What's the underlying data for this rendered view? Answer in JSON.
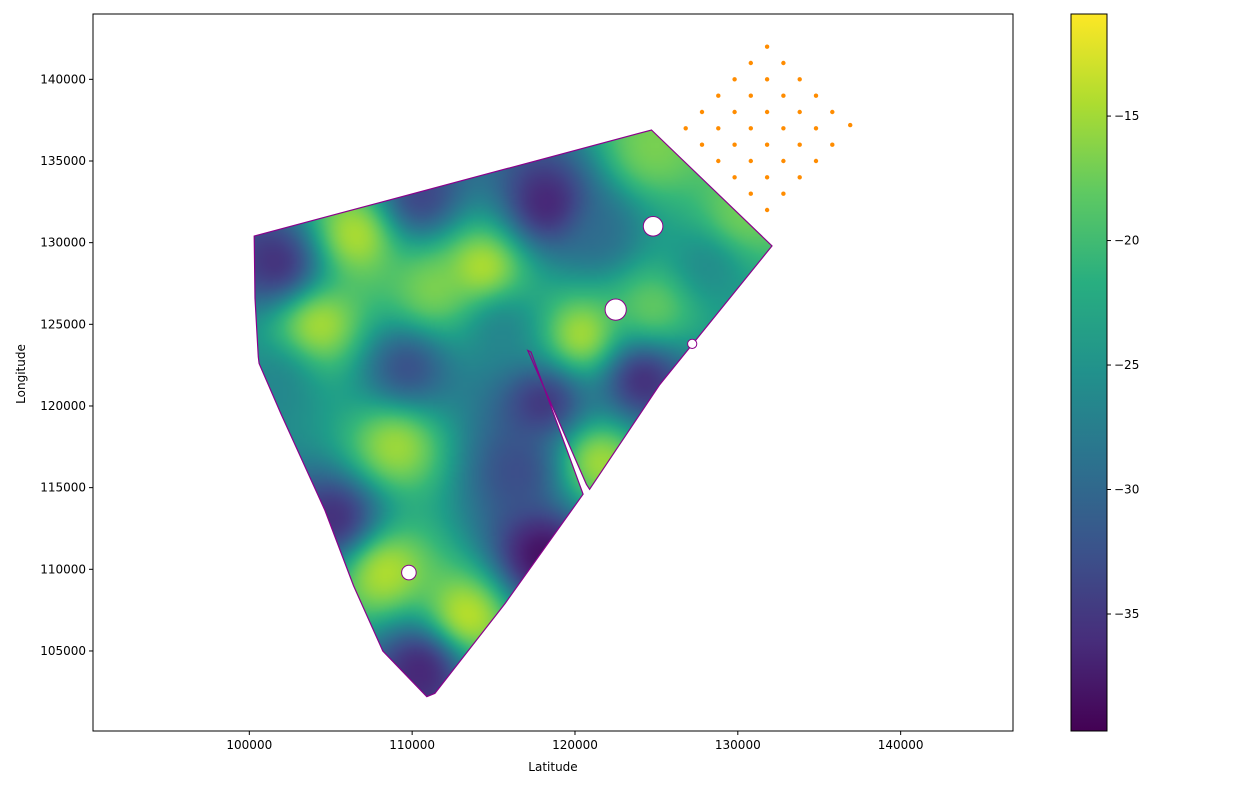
{
  "chart_data": {
    "type": "heatmap",
    "xlabel": "Latitude",
    "ylabel": "Longitude",
    "xlim": [
      90400,
      146900
    ],
    "ylim": [
      100100,
      144000
    ],
    "x_ticks": [
      100000,
      110000,
      120000,
      130000,
      140000
    ],
    "x_tick_labels": [
      "100000",
      "110000",
      "120000",
      "130000",
      "140000"
    ],
    "y_ticks": [
      105000,
      110000,
      115000,
      120000,
      125000,
      130000,
      135000,
      140000
    ],
    "y_tick_labels": [
      "105000",
      "110000",
      "115000",
      "120000",
      "125000",
      "130000",
      "135000",
      "140000"
    ],
    "colorbar": {
      "colormap": "viridis",
      "range": [
        -39.7,
        -10.9
      ],
      "ticks": [
        -35,
        -30,
        -25,
        -20,
        -15
      ],
      "tick_labels": [
        "−35",
        "−30",
        "−25",
        "−20",
        "−15"
      ]
    },
    "boundary": {
      "color": "#8b008b",
      "polygon": [
        [
          100300,
          130400
        ],
        [
          100350,
          126600
        ],
        [
          100550,
          123000
        ],
        [
          100600,
          122600
        ],
        [
          101950,
          119500
        ],
        [
          104650,
          113600
        ],
        [
          106400,
          109000
        ],
        [
          108200,
          105000
        ],
        [
          110900,
          102200
        ],
        [
          111400,
          102400
        ],
        [
          115700,
          107900
        ],
        [
          120500,
          114600
        ],
        [
          117300,
          123300
        ],
        [
          117100,
          123400
        ],
        [
          120700,
          115200
        ],
        [
          120900,
          114900
        ],
        [
          125200,
          121300
        ],
        [
          132100,
          129800
        ],
        [
          124700,
          136900
        ],
        [
          100300,
          130400
        ]
      ]
    },
    "exclusions": [
      {
        "x": 124800,
        "y": 131000,
        "r": 600
      },
      {
        "x": 122500,
        "y": 125900,
        "r": 650
      },
      {
        "x": 127200,
        "y": 123800,
        "r": 280
      },
      {
        "x": 109800,
        "y": 109800,
        "r": 450
      }
    ],
    "field_peaks": [
      {
        "x": 106600,
        "y": 130500,
        "v": -12
      },
      {
        "x": 104200,
        "y": 125000,
        "v": -12
      },
      {
        "x": 114400,
        "y": 128400,
        "v": -11
      },
      {
        "x": 109000,
        "y": 117600,
        "v": -13
      },
      {
        "x": 108200,
        "y": 110000,
        "v": -12
      },
      {
        "x": 113200,
        "y": 107000,
        "v": -11
      },
      {
        "x": 120400,
        "y": 124200,
        "v": -11
      },
      {
        "x": 121300,
        "y": 116700,
        "v": -12
      },
      {
        "x": 124700,
        "y": 135600,
        "v": -16
      },
      {
        "x": 130100,
        "y": 131400,
        "v": -16
      },
      {
        "x": 124800,
        "y": 126000,
        "v": -16
      },
      {
        "x": 111300,
        "y": 127000,
        "v": -15
      },
      {
        "x": 102000,
        "y": 128600,
        "v": -38
      },
      {
        "x": 110400,
        "y": 132600,
        "v": -36
      },
      {
        "x": 118300,
        "y": 132200,
        "v": -39
      },
      {
        "x": 109700,
        "y": 122400,
        "v": -35
      },
      {
        "x": 118200,
        "y": 120300,
        "v": -38
      },
      {
        "x": 124000,
        "y": 121800,
        "v": -39
      },
      {
        "x": 105500,
        "y": 113000,
        "v": -38
      },
      {
        "x": 118000,
        "y": 110900,
        "v": -40
      },
      {
        "x": 110800,
        "y": 104300,
        "v": -39
      },
      {
        "x": 116700,
        "y": 116100,
        "v": -34
      },
      {
        "x": 115400,
        "y": 125000,
        "v": -28
      },
      {
        "x": 128200,
        "y": 128800,
        "v": -27
      },
      {
        "x": 121500,
        "y": 130400,
        "v": -30
      },
      {
        "x": 101800,
        "y": 121600,
        "v": -27
      }
    ],
    "scatter": {
      "color": "#ff8c00",
      "points": [
        [
          131800,
          142000
        ],
        [
          130800,
          141000
        ],
        [
          132800,
          141000
        ],
        [
          129800,
          140000
        ],
        [
          131800,
          140000
        ],
        [
          133800,
          140000
        ],
        [
          128800,
          139000
        ],
        [
          130800,
          139000
        ],
        [
          132800,
          139000
        ],
        [
          134800,
          139000
        ],
        [
          127800,
          138000
        ],
        [
          129800,
          138000
        ],
        [
          131800,
          138000
        ],
        [
          133800,
          138000
        ],
        [
          135800,
          138000
        ],
        [
          126800,
          137000
        ],
        [
          128800,
          137000
        ],
        [
          130800,
          137000
        ],
        [
          132800,
          137000
        ],
        [
          134800,
          137000
        ],
        [
          136900,
          137200
        ],
        [
          127800,
          136000
        ],
        [
          129800,
          136000
        ],
        [
          131800,
          136000
        ],
        [
          133800,
          136000
        ],
        [
          135800,
          136000
        ],
        [
          128800,
          135000
        ],
        [
          130800,
          135000
        ],
        [
          132800,
          135000
        ],
        [
          134800,
          135000
        ],
        [
          129800,
          134000
        ],
        [
          131800,
          134000
        ],
        [
          133800,
          134000
        ],
        [
          130800,
          133000
        ],
        [
          132800,
          133000
        ],
        [
          131800,
          132000
        ]
      ]
    }
  }
}
